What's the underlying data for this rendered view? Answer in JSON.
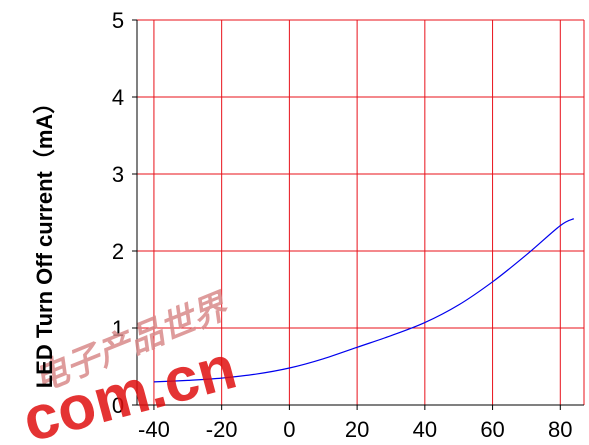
{
  "chart_data": {
    "type": "line",
    "title": "",
    "xlabel": "",
    "ylabel": "LED Turn Off current（mA）",
    "xlim": [
      -45,
      87
    ],
    "ylim": [
      0,
      5
    ],
    "x_ticks": [
      "-40",
      "-20",
      "0",
      "20",
      "40",
      "60",
      "80"
    ],
    "y_ticks": [
      "0",
      "1",
      "2",
      "3",
      "4",
      "5"
    ],
    "grid": true,
    "colors": {
      "grid": "#e8101a",
      "line": "#0000ee",
      "frame": "#000000"
    },
    "series": [
      {
        "x": [
          -40,
          -30,
          -20,
          -10,
          0,
          10,
          20,
          30,
          40,
          50,
          60,
          70,
          80,
          84
        ],
        "y": [
          0.3,
          0.32,
          0.35,
          0.4,
          0.48,
          0.6,
          0.75,
          0.9,
          1.07,
          1.3,
          1.6,
          1.95,
          2.33,
          2.42
        ]
      }
    ]
  },
  "watermark": {
    "text": "com.cn",
    "chinese": "电子产品世界",
    "color": "#e01010"
  }
}
